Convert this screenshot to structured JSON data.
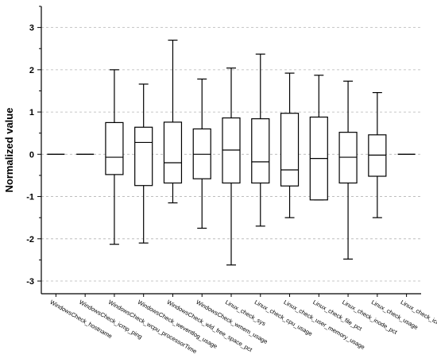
{
  "chart_data": {
    "type": "box",
    "ylabel": "Normalized value",
    "xlabel": "",
    "ylim": [
      -3.3,
      3.5
    ],
    "yticks": [
      -3,
      -2,
      -1,
      0,
      1,
      2,
      3
    ],
    "grid": "horizontal-dashed",
    "categories": [
      "WindowsCheck_hostname",
      "WindowsCheck_icmp_ping",
      "WindowsCheck_wcpu_processorTime",
      "WindowsCheck_weventlog_usage",
      "WindowsCheck_wld_free_space_pct",
      "WindowsCheck_wmem_usage",
      "Linux_check_sys",
      "Linux_check_cpu_usage",
      "Linux_check_user_memory_usage",
      "Linux_check_file_pct",
      "Linux_check_inode_pct",
      "Linux_check_usage",
      "Linux_check_icmp_ping"
    ],
    "boxes": [
      {
        "min": 0,
        "q1": 0,
        "median": 0,
        "q3": 0,
        "max": 0
      },
      {
        "min": 0,
        "q1": 0,
        "median": 0,
        "q3": 0,
        "max": 0
      },
      {
        "min": -2.13,
        "q1": -0.48,
        "median": -0.07,
        "q3": 0.75,
        "max": 2.0
      },
      {
        "min": -2.1,
        "q1": -0.74,
        "median": 0.28,
        "q3": 0.64,
        "max": 1.66
      },
      {
        "min": -1.15,
        "q1": -0.68,
        "median": -0.2,
        "q3": 0.76,
        "max": 2.7
      },
      {
        "min": -1.75,
        "q1": -0.58,
        "median": 0.0,
        "q3": 0.6,
        "max": 1.78
      },
      {
        "min": -2.62,
        "q1": -0.68,
        "median": 0.1,
        "q3": 0.86,
        "max": 2.04
      },
      {
        "min": -1.7,
        "q1": -0.68,
        "median": -0.18,
        "q3": 0.84,
        "max": 2.37
      },
      {
        "min": -1.5,
        "q1": -0.75,
        "median": -0.37,
        "q3": 0.97,
        "max": 1.92
      },
      {
        "min": -1.08,
        "q1": -1.08,
        "median": -0.1,
        "q3": 0.88,
        "max": 1.87
      },
      {
        "min": -2.48,
        "q1": -0.68,
        "median": -0.07,
        "q3": 0.52,
        "max": 1.73
      },
      {
        "min": -1.5,
        "q1": -0.52,
        "median": -0.02,
        "q3": 0.46,
        "max": 1.46
      },
      {
        "min": 0,
        "q1": 0,
        "median": 0,
        "q3": 0,
        "max": 0
      }
    ]
  }
}
